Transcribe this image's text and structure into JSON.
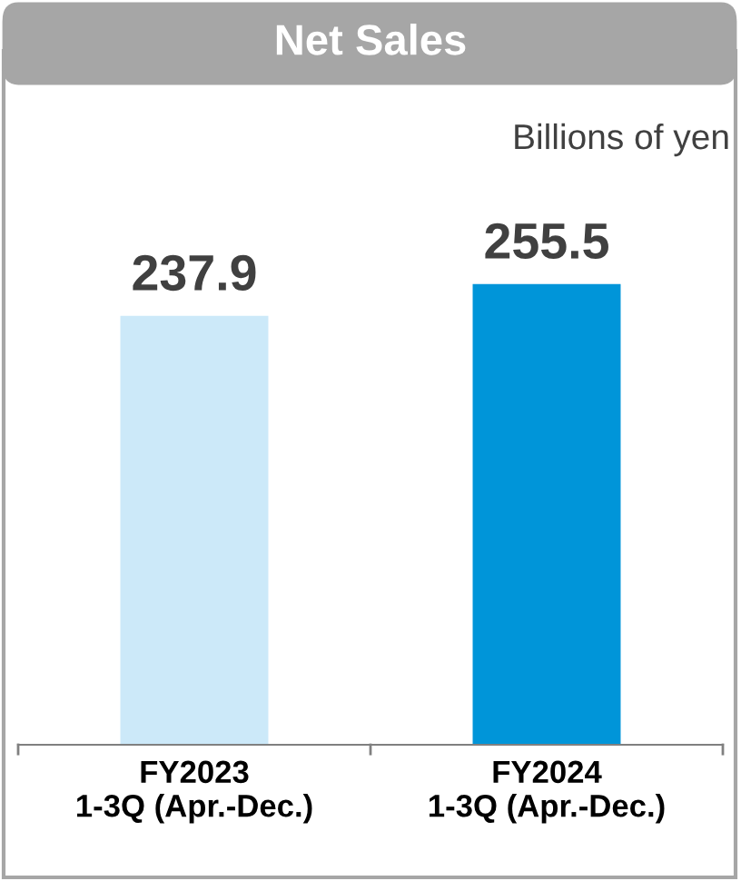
{
  "chart_data": {
    "type": "bar",
    "title": "Net Sales",
    "subtitle": "Billions of yen",
    "categories": [
      "FY2023\n1-3Q (Apr.-Dec.)",
      "FY2024\n1-3Q (Apr.-Dec.)"
    ],
    "values": [
      237.9,
      255.5
    ],
    "colors": [
      "#cce9f9",
      "#0095d9"
    ],
    "data_labels": true,
    "grid": false,
    "legend": false
  }
}
